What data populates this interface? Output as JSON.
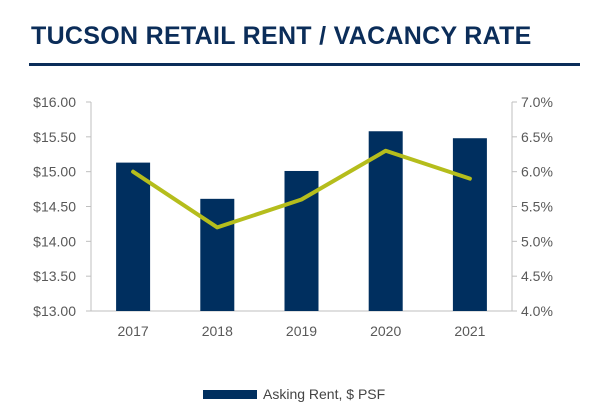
{
  "title": "TUCSON RETAIL RENT / VACANCY RATE",
  "colors": {
    "title": "#0b2d59",
    "bars": "#002f5f",
    "line": "#b5bd1c",
    "axis_text": "#595959",
    "axis_line": "#bfbfbf"
  },
  "chart_data": {
    "type": "bar",
    "title": "TUCSON RETAIL RENT / VACANCY RATE",
    "categories": [
      "2017",
      "2018",
      "2019",
      "2020",
      "2021"
    ],
    "series": [
      {
        "name": "Asking Rent, $ PSF",
        "type": "bar",
        "axis": "left",
        "values": [
          15.13,
          14.61,
          15.01,
          15.58,
          15.48
        ]
      },
      {
        "type": "line",
        "axis": "right",
        "values": [
          6.0,
          5.2,
          5.6,
          6.3,
          5.9
        ]
      }
    ],
    "y_left": {
      "lim": [
        13.0,
        16.0
      ],
      "ticks": [
        "$13.00",
        "$13.50",
        "$14.00",
        "$14.50",
        "$15.00",
        "$15.50",
        "$16.00"
      ]
    },
    "y_right": {
      "lim": [
        4.0,
        7.0
      ],
      "ticks": [
        "4.0%",
        "4.5%",
        "5.0%",
        "5.5%",
        "6.0%",
        "6.5%",
        "7.0%"
      ]
    },
    "grid": false,
    "legend": "bottom"
  }
}
